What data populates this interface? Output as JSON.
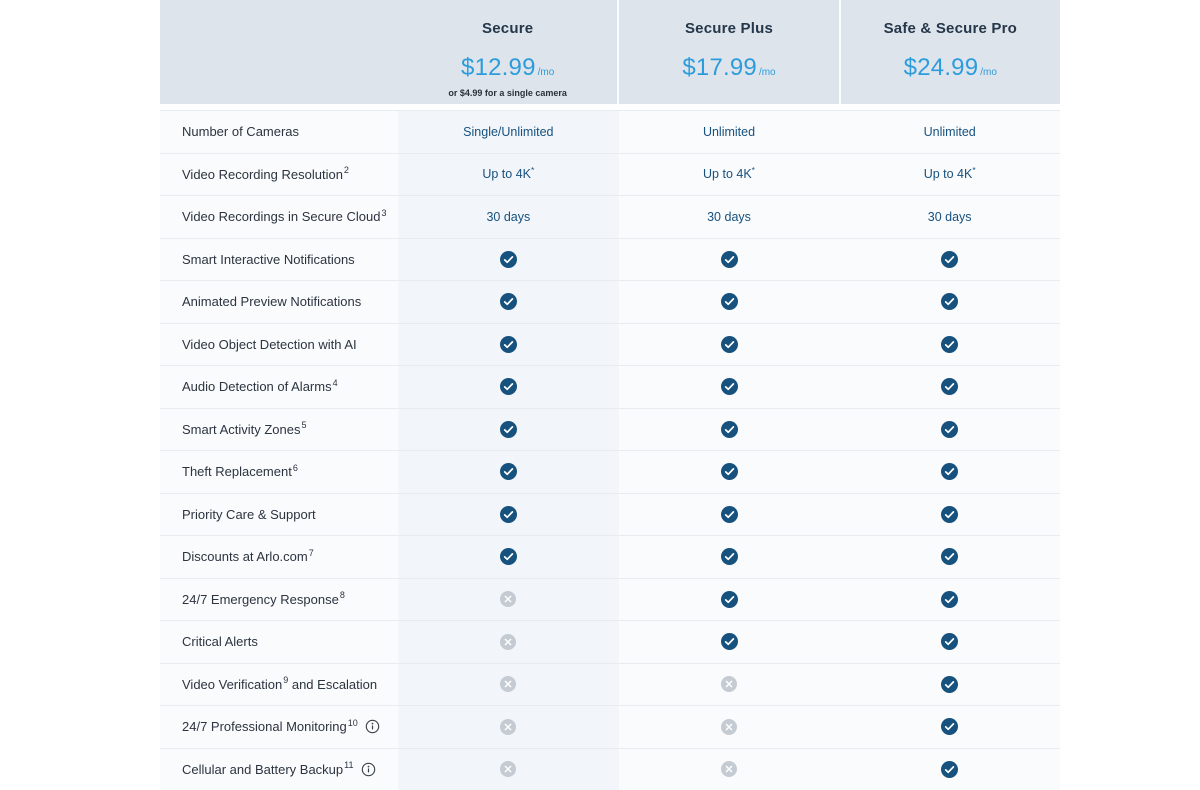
{
  "colors": {
    "accent_blue": "#2d9cdb",
    "check_navy": "#17517e",
    "cross_gray": "#c5cbd2",
    "header_bg": "#dee4ec",
    "secure_column_tint": "#f2f6fa",
    "row_bg": "#fafbfc",
    "separator": "#e9ecef",
    "label_text": "#2b3440",
    "plan_name_text": "#25374a"
  },
  "plans": [
    {
      "name": "Secure",
      "price": "$12.99",
      "period": "/mo",
      "note": "or $4.99 for a single camera"
    },
    {
      "name": "Secure Plus",
      "price": "$17.99",
      "period": "/mo",
      "note": ""
    },
    {
      "name": "Safe & Secure Pro",
      "price": "$24.99",
      "period": "/mo",
      "note": ""
    }
  ],
  "features": [
    {
      "label": "Number of Cameras",
      "sup": "",
      "label_after": "",
      "info": false,
      "values": [
        {
          "type": "text",
          "text": "Single/Unlimited",
          "sup": ""
        },
        {
          "type": "text",
          "text": "Unlimited",
          "sup": ""
        },
        {
          "type": "text",
          "text": "Unlimited",
          "sup": ""
        }
      ]
    },
    {
      "label": "Video Recording Resolution",
      "sup": "2",
      "label_after": "",
      "info": false,
      "values": [
        {
          "type": "text",
          "text": "Up to 4K",
          "sup": "*"
        },
        {
          "type": "text",
          "text": "Up to 4K",
          "sup": "*"
        },
        {
          "type": "text",
          "text": "Up to 4K",
          "sup": "*"
        }
      ]
    },
    {
      "label": "Video Recordings in Secure Cloud",
      "sup": "3",
      "label_after": "",
      "info": false,
      "values": [
        {
          "type": "text",
          "text": "30 days",
          "sup": ""
        },
        {
          "type": "text",
          "text": "30 days",
          "sup": ""
        },
        {
          "type": "text",
          "text": "30 days",
          "sup": ""
        }
      ]
    },
    {
      "label": "Smart Interactive Notifications",
      "sup": "",
      "label_after": "",
      "info": false,
      "values": [
        {
          "type": "check"
        },
        {
          "type": "check"
        },
        {
          "type": "check"
        }
      ]
    },
    {
      "label": "Animated Preview Notifications",
      "sup": "",
      "label_after": "",
      "info": false,
      "values": [
        {
          "type": "check"
        },
        {
          "type": "check"
        },
        {
          "type": "check"
        }
      ]
    },
    {
      "label": "Video Object Detection with AI",
      "sup": "",
      "label_after": "",
      "info": false,
      "values": [
        {
          "type": "check"
        },
        {
          "type": "check"
        },
        {
          "type": "check"
        }
      ]
    },
    {
      "label": "Audio Detection of Alarms",
      "sup": "4",
      "label_after": "",
      "info": false,
      "values": [
        {
          "type": "check"
        },
        {
          "type": "check"
        },
        {
          "type": "check"
        }
      ]
    },
    {
      "label": "Smart Activity Zones",
      "sup": "5",
      "label_after": "",
      "info": false,
      "values": [
        {
          "type": "check"
        },
        {
          "type": "check"
        },
        {
          "type": "check"
        }
      ]
    },
    {
      "label": "Theft Replacement",
      "sup": "6",
      "label_after": "",
      "info": false,
      "values": [
        {
          "type": "check"
        },
        {
          "type": "check"
        },
        {
          "type": "check"
        }
      ]
    },
    {
      "label": "Priority Care & Support",
      "sup": "",
      "label_after": "",
      "info": false,
      "values": [
        {
          "type": "check"
        },
        {
          "type": "check"
        },
        {
          "type": "check"
        }
      ]
    },
    {
      "label": "Discounts at Arlo.com",
      "sup": "7",
      "label_after": "",
      "info": false,
      "values": [
        {
          "type": "check"
        },
        {
          "type": "check"
        },
        {
          "type": "check"
        }
      ]
    },
    {
      "label": "24/7 Emergency Response",
      "sup": "8",
      "label_after": "",
      "info": false,
      "values": [
        {
          "type": "cross"
        },
        {
          "type": "check"
        },
        {
          "type": "check"
        }
      ]
    },
    {
      "label": "Critical Alerts",
      "sup": "",
      "label_after": "",
      "info": false,
      "values": [
        {
          "type": "cross"
        },
        {
          "type": "check"
        },
        {
          "type": "check"
        }
      ]
    },
    {
      "label": "Video Verification",
      "sup": "9",
      "label_after": " and Escalation",
      "info": false,
      "values": [
        {
          "type": "cross"
        },
        {
          "type": "cross"
        },
        {
          "type": "check"
        }
      ]
    },
    {
      "label": "24/7 Professional Monitoring",
      "sup": "10",
      "label_after": "",
      "info": true,
      "values": [
        {
          "type": "cross"
        },
        {
          "type": "cross"
        },
        {
          "type": "check"
        }
      ]
    },
    {
      "label": "Cellular and Battery Backup",
      "sup": "11",
      "label_after": "",
      "info": true,
      "values": [
        {
          "type": "cross"
        },
        {
          "type": "cross"
        },
        {
          "type": "check"
        }
      ]
    }
  ]
}
